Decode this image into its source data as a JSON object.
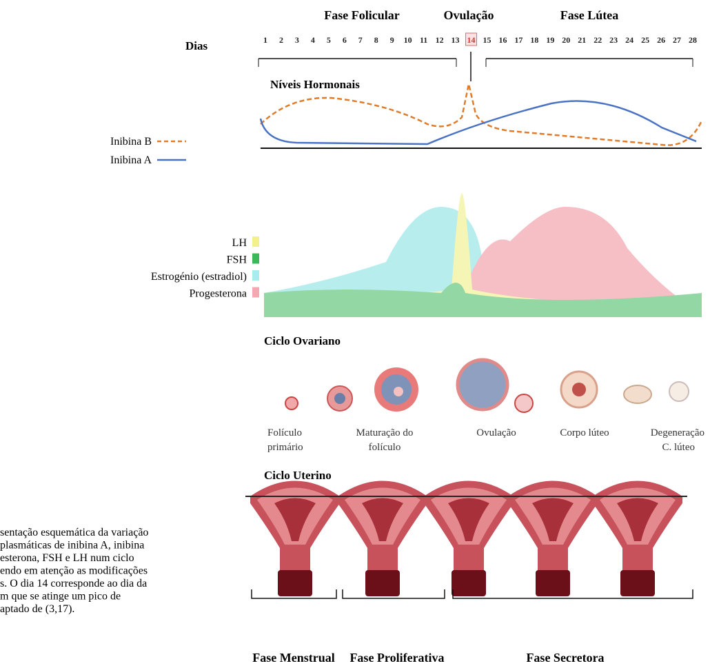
{
  "header": {
    "phases": [
      "Fase Folicular",
      "Ovulação",
      "Fase Lútea"
    ],
    "days_label": "Dias",
    "days": [
      1,
      2,
      3,
      4,
      5,
      6,
      7,
      8,
      9,
      10,
      11,
      12,
      13,
      14,
      15,
      16,
      17,
      18,
      19,
      20,
      21,
      22,
      23,
      24,
      25,
      26,
      27,
      28
    ]
  },
  "hormones": {
    "title": "Níveis Hormonais",
    "inhibin_legend": [
      "Inibina B",
      "Inibina A"
    ],
    "hormone_legend": [
      "LH",
      "FSH",
      "Estrogénio (estradiol)",
      "Progesterona"
    ]
  },
  "ovarian": {
    "title": "Ciclo Ovariano",
    "stages": [
      [
        "Folículo",
        "primário"
      ],
      [
        "Maturação do",
        "folículo"
      ],
      [
        "Ovulação"
      ],
      [
        "Corpo lúteo"
      ],
      [
        "Degeneração",
        "C. lúteo"
      ]
    ]
  },
  "uterine": {
    "title": "Ciclo Uterino",
    "phases": [
      "Fase Menstrual",
      "Fase Proliferativa",
      "Fase Secretora"
    ]
  },
  "caption": [
    "sentação esquemática da variação",
    "plasmáticas de inibina A, inibina",
    "esterona, FSH e LH num ciclo",
    "endo em atenção as modificações",
    "s. O dia 14 corresponde ao dia da",
    "m que se atinge um pico de",
    "aptado de (3,17)."
  ]
}
